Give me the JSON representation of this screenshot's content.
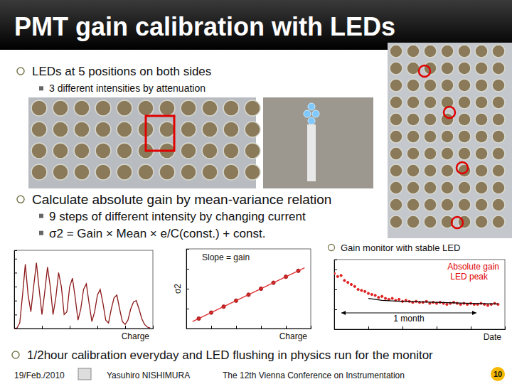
{
  "slide": {
    "title": "PMT gain calibration with LEDs",
    "bullets": [
      {
        "text": "LEDs at 5 positions on both sides",
        "sub": [
          "3 different intensities by attenuation"
        ]
      },
      {
        "text": "Calculate absolute gain by mean-variance relation",
        "sub": [
          "9 steps of different intensity by changing current",
          "σ2 = Gain × Mean × e/C(const.) + const."
        ]
      },
      {
        "text": "1/2hour calibration everyday and LED flushing in physics run for the monitor",
        "sub": []
      }
    ],
    "monitor_caption": "Gain monitor with stable LED",
    "footer": {
      "date": "19/Feb./2010",
      "author": "Yasuhiro NISHIMURA",
      "conference": "The 12th Vienna Conference on Instrumentation",
      "page": "10"
    }
  },
  "chart_data": [
    {
      "type": "line",
      "x_label": "Charge",
      "annotations": [],
      "color": "#8b1a1a",
      "x": [
        0,
        2,
        4,
        6,
        8,
        10,
        12,
        14,
        16,
        18,
        20,
        22,
        24,
        26,
        28,
        30,
        32,
        34,
        36,
        38,
        40,
        42,
        44,
        46,
        48,
        50,
        52,
        54,
        56,
        58,
        60,
        62,
        64,
        66,
        68,
        70,
        72,
        74,
        76,
        78,
        80,
        82,
        84,
        86,
        88,
        90,
        92,
        94,
        96,
        98
      ],
      "values": [
        0,
        2,
        20,
        120,
        230,
        120,
        60,
        150,
        235,
        140,
        50,
        130,
        220,
        150,
        50,
        110,
        200,
        150,
        50,
        60,
        150,
        180,
        110,
        30,
        70,
        140,
        160,
        90,
        25,
        60,
        120,
        140,
        90,
        30,
        20,
        70,
        110,
        120,
        70,
        25,
        15,
        30,
        70,
        95,
        100,
        70,
        35,
        15,
        5,
        2
      ],
      "xlim": [
        0,
        100
      ],
      "ylim": [
        0,
        280
      ],
      "xticks": [
        0,
        20,
        40,
        60,
        80,
        100
      ],
      "yticks": [
        0,
        50,
        100,
        150,
        200,
        250
      ],
      "tick_labels": false
    },
    {
      "type": "scatter",
      "x_label": "Charge",
      "y_label": "σ2",
      "annotations": [
        "Slope = gain"
      ],
      "series": [
        {
          "type": "scatter",
          "color": "#b22222",
          "marker": "circle",
          "x": [
            1,
            2,
            3,
            4,
            5,
            6,
            7,
            8,
            9
          ],
          "values": [
            0.05,
            0.08,
            0.11,
            0.14,
            0.17,
            0.2,
            0.23,
            0.26,
            0.29
          ]
        },
        {
          "type": "line",
          "color": "#e03030",
          "x": [
            0.5,
            9.5
          ],
          "values": [
            0.035,
            0.305
          ]
        }
      ],
      "xlim": [
        0,
        10
      ],
      "ylim": [
        0,
        0.4
      ],
      "xticks": [
        0,
        2,
        4,
        6,
        8,
        10
      ],
      "yticks": [
        0,
        0.1,
        0.2,
        0.3,
        0.4
      ],
      "tick_labels": false
    },
    {
      "type": "scatter",
      "x_label": "Date",
      "annotations": [
        "Absolute gain",
        "LED peak",
        "1 month"
      ],
      "series": [
        {
          "type": "scatter",
          "color": "#e02020",
          "marker": "circle",
          "x": [
            0,
            1,
            2,
            3,
            4,
            5,
            6,
            7,
            8,
            9,
            10,
            11,
            12,
            13,
            14,
            15,
            16,
            17,
            18,
            19,
            20,
            21,
            22,
            23,
            24,
            25,
            26,
            27,
            28,
            29,
            30,
            31,
            32,
            33,
            34,
            35,
            36,
            37,
            38,
            39,
            40,
            41,
            42,
            43,
            44,
            45,
            46,
            47,
            48
          ],
          "values": [
            216,
            213,
            214,
            209,
            207,
            205,
            203,
            200,
            199,
            198,
            196,
            195,
            194,
            192,
            193,
            191,
            190,
            191,
            189,
            190,
            188,
            189,
            188,
            187,
            188,
            187,
            187,
            188,
            186,
            187,
            186,
            187,
            186,
            185,
            186,
            187,
            186,
            185,
            186,
            185,
            186,
            185,
            185,
            186,
            185,
            184,
            185,
            186,
            185
          ]
        },
        {
          "type": "line",
          "color": "#000000",
          "x": [
            10,
            14,
            20,
            30,
            40,
            48
          ],
          "values": [
            191,
            189,
            188,
            187,
            186,
            185.5
          ]
        }
      ],
      "xlim": [
        0,
        50
      ],
      "ylim": [
        160,
        230
      ],
      "xticks": [
        0,
        10,
        20,
        30,
        40,
        50
      ],
      "yticks": [
        160,
        180,
        200,
        220
      ],
      "tick_labels": false
    }
  ]
}
